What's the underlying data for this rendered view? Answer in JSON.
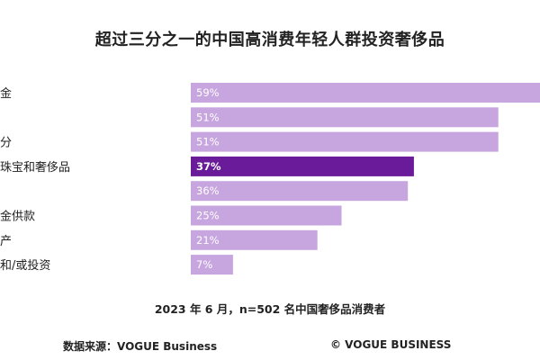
{
  "chart_data": {
    "type": "bar",
    "orientation": "horizontal",
    "title": "超过三分之一的中国高消费年轻人群投资奢侈品",
    "categories": [
      "金",
      "",
      "分",
      "珠宝和奢侈品",
      "",
      "金供款",
      "产",
      "和/或投资"
    ],
    "values": [
      59,
      51,
      51,
      37,
      36,
      25,
      21,
      7
    ],
    "value_labels": [
      "59%",
      "51%",
      "51%",
      "37%",
      "36%",
      "25%",
      "21%",
      "7%"
    ],
    "highlight_index": 3,
    "xlim": [
      0,
      100
    ],
    "grid": false,
    "legend": "none",
    "colors": {
      "bar": "#c7a6df",
      "highlight": "#6a1b9a",
      "label_on_bar": "#ffffff"
    }
  },
  "footer": {
    "note": "2023 年 6 月，n=502 名中国奢侈品消费者",
    "source": "数据来源：VOGUE Business",
    "copyright": "© VOGUE BUSINESS"
  }
}
